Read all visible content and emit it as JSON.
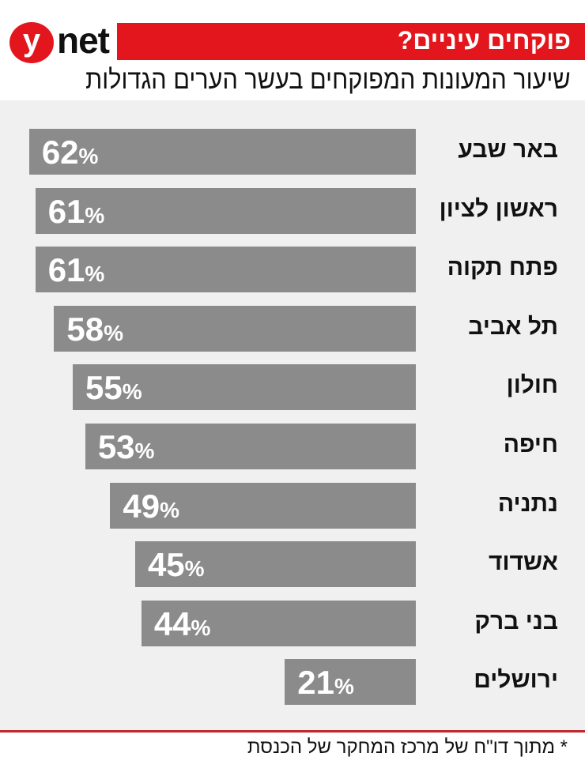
{
  "logo": {
    "y": "y",
    "net": "net"
  },
  "colors": {
    "brand_red": "#e3161d",
    "bar": "#8b8b8b",
    "background": "#f0f0f0"
  },
  "header": {
    "title": "פוקחים עיניים?",
    "subtitle": "שיעור המעונות המפוקחים בעשר הערים הגדולות"
  },
  "footnote": "* מתוך דו\"ח של מרכז המחקר של הכנסת",
  "chart_data": {
    "type": "bar",
    "orientation": "horizontal",
    "unit": "%",
    "categories": [
      "באר שבע",
      "ראשון לציון",
      "פתח תקוה",
      "תל אביב",
      "חולון",
      "חיפה",
      "נתניה",
      "אשדוד",
      "בני ברק",
      "ירושלים"
    ],
    "values": [
      62,
      61,
      61,
      58,
      55,
      53,
      49,
      45,
      44,
      21
    ],
    "title": "שיעור המעונות המפוקחים בעשר הערים הגדולות",
    "grid": false
  }
}
